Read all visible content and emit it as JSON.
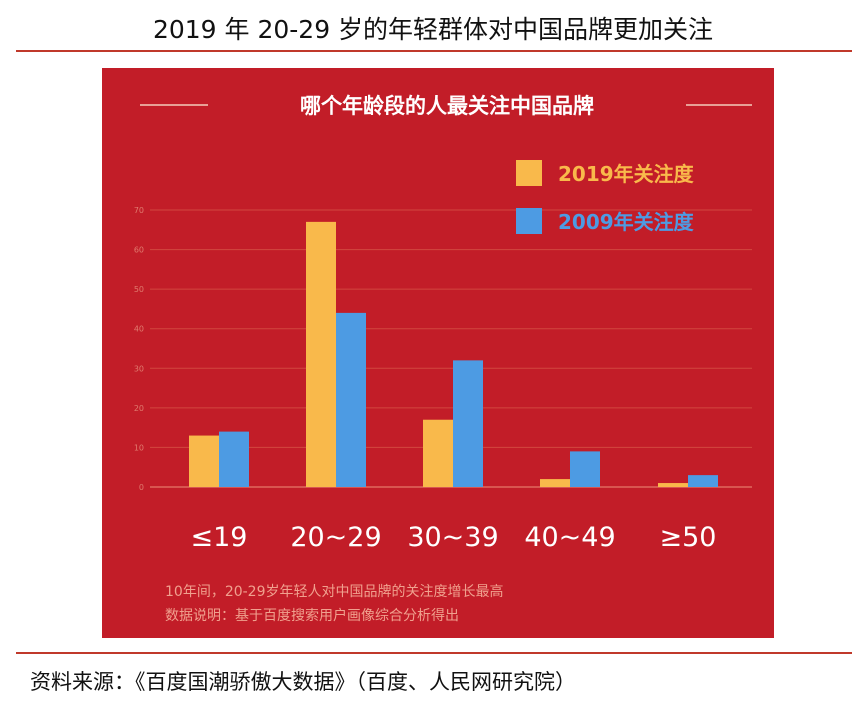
{
  "figure_title": "2019 年 20-29 岁的年轻群体对中国品牌更加关注",
  "source_text": "资料来源：《百度国潮骄傲大数据》（百度、人民网研究院）",
  "colors": {
    "panel": "#c21d28",
    "series_2019": "#f9b94b",
    "series_2009": "#4d9be3",
    "rule": "#c0392b"
  },
  "chart_data": {
    "type": "bar",
    "title": "哪个年龄段的人最关注中国品牌",
    "categories": [
      "≤19",
      "20~29",
      "30~39",
      "40~49",
      "≥50"
    ],
    "series": [
      {
        "name": "2019年关注度",
        "values": [
          13,
          67,
          17,
          2,
          1
        ]
      },
      {
        "name": "2009年关注度",
        "values": [
          14,
          44,
          32,
          9,
          3
        ]
      }
    ],
    "yticks": [
      0,
      10,
      20,
      30,
      40,
      50,
      60,
      70
    ],
    "ylim": [
      0,
      70
    ],
    "grid": true,
    "legend_position": "top-right",
    "notes": [
      "10年间，20-29岁年轻人对中国品牌的关注度增长最高",
      "数据说明：基于百度搜索用户画像综合分析得出"
    ]
  }
}
